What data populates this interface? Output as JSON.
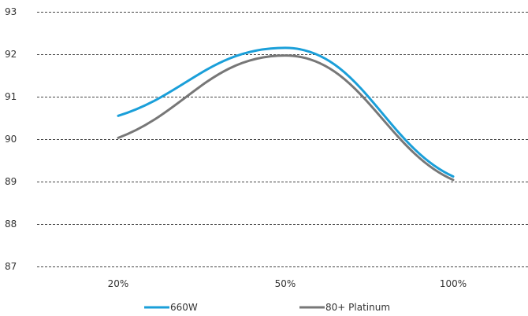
{
  "chart_data": {
    "type": "line",
    "categories": [
      "20%",
      "50%",
      "100%"
    ],
    "ylim": [
      87,
      93
    ],
    "yticks": [
      93,
      92,
      91,
      90,
      89,
      88,
      87
    ],
    "grid": true,
    "legend_position": "bottom",
    "series": [
      {
        "name": "660W",
        "values": [
          90.55,
          92.15,
          89.12
        ],
        "color": "#1a9fd9"
      },
      {
        "name": "80+ Platinum",
        "values": [
          90.03,
          91.97,
          89.04
        ],
        "color": "#777777"
      }
    ]
  }
}
